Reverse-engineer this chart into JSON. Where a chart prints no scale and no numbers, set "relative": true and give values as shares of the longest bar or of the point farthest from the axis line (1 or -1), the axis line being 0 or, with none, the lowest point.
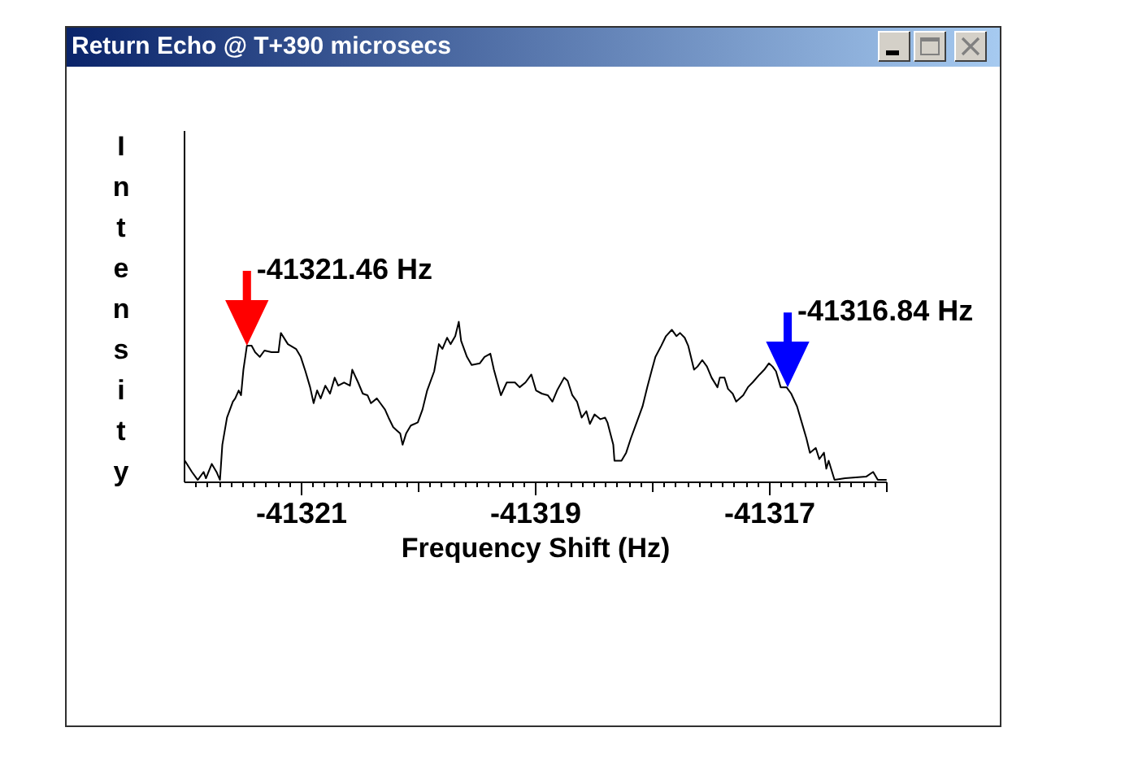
{
  "chart_data": {
    "type": "line",
    "title": "Return Echo @ T+390 microsecs",
    "xlabel": "Frequency Shift (Hz)",
    "ylabel": "Intensity",
    "relative": true,
    "color": "#000000",
    "xlim": [
      -41322,
      -41316
    ],
    "xticks": [
      {
        "value": -41321.9,
        "label": null
      },
      {
        "value": -41321.8,
        "label": null
      },
      {
        "value": -41321.7,
        "label": null
      },
      {
        "value": -41321.6,
        "label": null
      },
      {
        "value": -41321.5,
        "label": null
      },
      {
        "value": -41321.4,
        "label": null
      },
      {
        "value": -41321.3,
        "label": null
      },
      {
        "value": -41321.2,
        "label": null
      },
      {
        "value": -41321.1,
        "label": null
      },
      -41321,
      {
        "value": -41320.9,
        "label": null
      },
      {
        "value": -41320.8,
        "label": null
      },
      {
        "value": -41320.7,
        "label": null
      },
      {
        "value": -41320.6,
        "label": null
      },
      {
        "value": -41320.5,
        "label": null
      },
      {
        "value": -41320.4,
        "label": null
      },
      {
        "value": -41320.3,
        "label": null
      },
      {
        "value": -41320.2,
        "label": null
      },
      {
        "value": -41320.1,
        "label": null
      },
      {
        "value": -41320,
        "label": null
      },
      {
        "value": -41319.9,
        "label": null
      },
      {
        "value": -41319.8,
        "label": null
      },
      {
        "value": -41319.7,
        "label": null
      },
      {
        "value": -41319.6,
        "label": null
      },
      {
        "value": -41319.5,
        "label": null
      },
      {
        "value": -41319.4,
        "label": null
      },
      {
        "value": -41319.3,
        "label": null
      },
      {
        "value": -41319.2,
        "label": null
      },
      {
        "value": -41319.1,
        "label": null
      },
      -41319,
      {
        "value": -41318.9,
        "label": null
      },
      {
        "value": -41318.8,
        "label": null
      },
      {
        "value": -41318.7,
        "label": null
      },
      {
        "value": -41318.6,
        "label": null
      },
      {
        "value": -41318.5,
        "label": null
      },
      {
        "value": -41318.4,
        "label": null
      },
      {
        "value": -41318.3,
        "label": null
      },
      {
        "value": -41318.2,
        "label": null
      },
      {
        "value": -41318.1,
        "label": null
      },
      {
        "value": -41318,
        "label": null
      },
      {
        "value": -41317.9,
        "label": null
      },
      {
        "value": -41317.8,
        "label": null
      },
      {
        "value": -41317.7,
        "label": null
      },
      {
        "value": -41317.6,
        "label": null
      },
      {
        "value": -41317.5,
        "label": null
      },
      {
        "value": -41317.4,
        "label": null
      },
      {
        "value": -41317.3,
        "label": null
      },
      {
        "value": -41317.2,
        "label": null
      },
      {
        "value": -41317.1,
        "label": null
      },
      -41317,
      {
        "value": -41316.9,
        "label": null
      },
      {
        "value": -41316.8,
        "label": null
      },
      {
        "value": -41316.7,
        "label": null
      },
      {
        "value": -41316.6,
        "label": null
      },
      {
        "value": -41316.5,
        "label": null
      },
      {
        "value": -41316.4,
        "label": null
      },
      {
        "value": -41316.3,
        "label": null
      },
      {
        "value": -41316.2,
        "label": null
      },
      {
        "value": -41316.1,
        "label": null
      },
      {
        "value": -41316,
        "label": null
      }
    ],
    "x": [
      -41321.99,
      -41321.93,
      -41321.88,
      -41321.83,
      -41321.81,
      -41321.76,
      -41321.72,
      -41321.69,
      -41321.67,
      -41321.63,
      -41321.58,
      -41321.56,
      -41321.53,
      -41321.51,
      -41321.49,
      -41321.46,
      -41321.42,
      -41321.39,
      -41321.35,
      -41321.31,
      -41321.25,
      -41321.19,
      -41321.17,
      -41321.11,
      -41321.04,
      -41321.0,
      -41320.96,
      -41320.92,
      -41320.89,
      -41320.86,
      -41320.83,
      -41320.79,
      -41320.75,
      -41320.71,
      -41320.68,
      -41320.63,
      -41320.58,
      -41320.56,
      -41320.51,
      -41320.47,
      -41320.43,
      -41320.4,
      -41320.35,
      -41320.32,
      -41320.28,
      -41320.25,
      -41320.21,
      -41320.18,
      -41320.15,
      -41320.13,
      -41320.1,
      -41320.06,
      -41320.0,
      -41319.96,
      -41319.92,
      -41319.86,
      -41319.82,
      -41319.79,
      -41319.75,
      -41319.72,
      -41319.68,
      -41319.65,
      -41319.63,
      -41319.58,
      -41319.54,
      -41319.47,
      -41319.43,
      -41319.38,
      -41319.35,
      -41319.29,
      -41319.24,
      -41319.17,
      -41319.13,
      -41319.08,
      -41319.03,
      -41318.99,
      -41318.94,
      -41318.89,
      -41318.85,
      -41318.81,
      -41318.75,
      -41318.72,
      -41318.68,
      -41318.64,
      -41318.6,
      -41318.56,
      -41318.53,
      -41318.49,
      -41318.44,
      -41318.4,
      -41318.38,
      -41318.33,
      -41318.32,
      -41318.26,
      -41318.22,
      -41318.18,
      -41318.13,
      -41318.08,
      -41318.04,
      -41318.0,
      -41317.97,
      -41317.92,
      -41317.88,
      -41317.83,
      -41317.79,
      -41317.76,
      -41317.72,
      -41317.69,
      -41317.64,
      -41317.61,
      -41317.57,
      -41317.53,
      -41317.49,
      -41317.44,
      -41317.42,
      -41317.38,
      -41317.35,
      -41317.31,
      -41317.28,
      -41317.22,
      -41317.18,
      -41317.14,
      -41317.08,
      -41317.04,
      -41317.0,
      -41316.97,
      -41316.94,
      -41316.9,
      -41316.85,
      -41316.81,
      -41316.76,
      -41316.72,
      -41316.68,
      -41316.65,
      -41316.6,
      -41316.57,
      -41316.53,
      -41316.51,
      -41316.49,
      -41316.44,
      -41316.35,
      -41316.17,
      -41316.11,
      -41316.07,
      -41316.0
    ],
    "values": [
      0.13,
      0.06,
      0.01,
      0.06,
      0.02,
      0.11,
      0.06,
      0.01,
      0.23,
      0.4,
      0.5,
      0.52,
      0.57,
      0.54,
      0.7,
      0.85,
      0.85,
      0.81,
      0.78,
      0.82,
      0.81,
      0.81,
      0.93,
      0.86,
      0.83,
      0.78,
      0.69,
      0.59,
      0.49,
      0.57,
      0.52,
      0.6,
      0.55,
      0.65,
      0.6,
      0.62,
      0.6,
      0.7,
      0.62,
      0.55,
      0.54,
      0.49,
      0.52,
      0.49,
      0.45,
      0.4,
      0.34,
      0.32,
      0.3,
      0.23,
      0.3,
      0.35,
      0.37,
      0.45,
      0.57,
      0.69,
      0.86,
      0.83,
      0.9,
      0.86,
      0.91,
      1.0,
      0.88,
      0.78,
      0.73,
      0.74,
      0.78,
      0.8,
      0.7,
      0.54,
      0.62,
      0.62,
      0.59,
      0.62,
      0.67,
      0.57,
      0.55,
      0.54,
      0.5,
      0.57,
      0.65,
      0.63,
      0.54,
      0.5,
      0.4,
      0.44,
      0.36,
      0.42,
      0.39,
      0.4,
      0.37,
      0.23,
      0.13,
      0.13,
      0.18,
      0.27,
      0.37,
      0.47,
      0.59,
      0.7,
      0.78,
      0.85,
      0.91,
      0.95,
      0.91,
      0.93,
      0.9,
      0.85,
      0.7,
      0.72,
      0.76,
      0.72,
      0.65,
      0.59,
      0.65,
      0.65,
      0.58,
      0.55,
      0.5,
      0.54,
      0.59,
      0.62,
      0.67,
      0.7,
      0.74,
      0.72,
      0.69,
      0.59,
      0.59,
      0.55,
      0.47,
      0.37,
      0.27,
      0.18,
      0.21,
      0.14,
      0.18,
      0.08,
      0.13,
      0.01,
      0.02,
      0.03,
      0.06,
      0.01,
      0.01
    ],
    "annotations": [
      {
        "text": "-41321.46 Hz",
        "x": -41321.46,
        "y": 0.85
      },
      {
        "text": "-41316.84 Hz",
        "x": -41316.84,
        "y": 0.59
      }
    ]
  }
}
